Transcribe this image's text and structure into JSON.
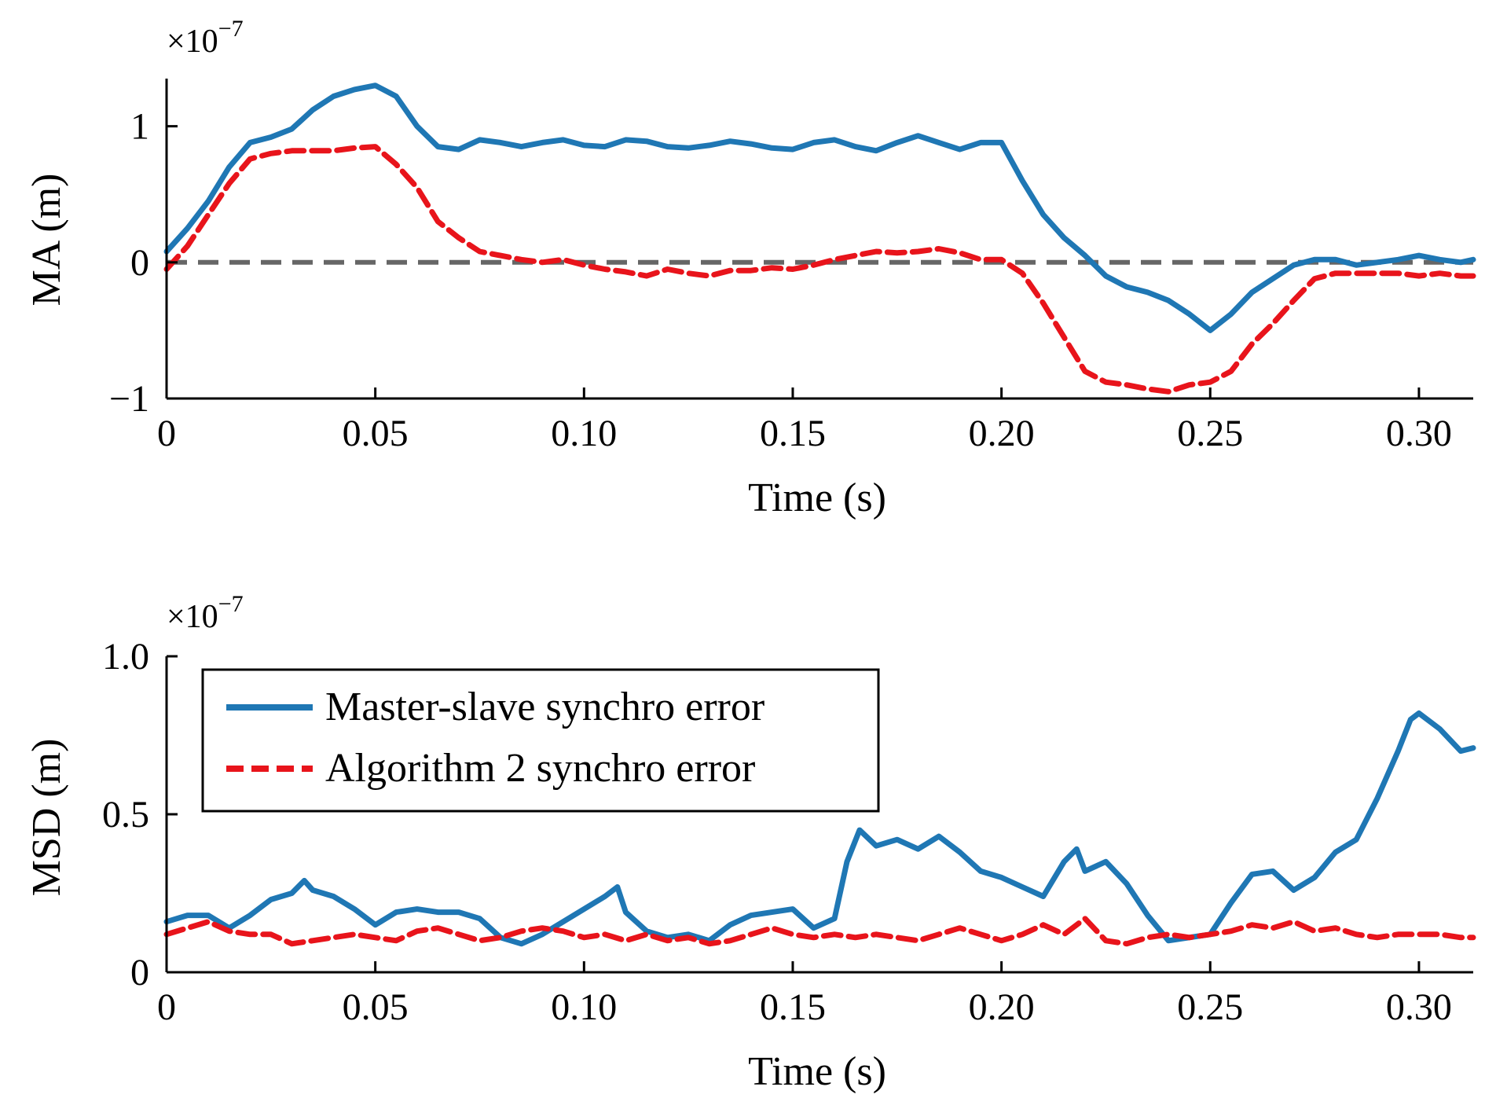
{
  "chart_data": [
    {
      "type": "line",
      "xlabel": "Time (s)",
      "ylabel": "MA (m)",
      "multiplier": "×10",
      "multiplier_exp": "−7",
      "xlim": [
        0,
        0.313
      ],
      "ylim": [
        -1,
        1.35
      ],
      "xticks": [
        0,
        0.05,
        0.1,
        0.15,
        0.2,
        0.25,
        0.3
      ],
      "xtick_labels": [
        "0",
        "0.05",
        "0.10",
        "0.15",
        "0.20",
        "0.25",
        "0.30"
      ],
      "yticks": [
        -1,
        0,
        1
      ],
      "ytick_labels": [
        "−1",
        "0",
        "1"
      ],
      "reference_line": {
        "y": 0,
        "color": "#666666",
        "style": "dashed"
      },
      "legend": "none",
      "series": [
        {
          "color": "#1f77b4",
          "style": "solid",
          "x": [
            0,
            0.005,
            0.01,
            0.015,
            0.02,
            0.025,
            0.03,
            0.035,
            0.04,
            0.045,
            0.05,
            0.055,
            0.06,
            0.065,
            0.07,
            0.075,
            0.08,
            0.085,
            0.09,
            0.095,
            0.1,
            0.105,
            0.11,
            0.115,
            0.12,
            0.125,
            0.13,
            0.135,
            0.14,
            0.145,
            0.15,
            0.155,
            0.16,
            0.165,
            0.17,
            0.175,
            0.18,
            0.185,
            0.19,
            0.195,
            0.2,
            0.205,
            0.21,
            0.215,
            0.22,
            0.225,
            0.23,
            0.235,
            0.24,
            0.245,
            0.25,
            0.255,
            0.26,
            0.265,
            0.27,
            0.275,
            0.28,
            0.285,
            0.29,
            0.295,
            0.3,
            0.305,
            0.31,
            0.313
          ],
          "y": [
            0.08,
            0.25,
            0.45,
            0.7,
            0.88,
            0.92,
            0.98,
            1.12,
            1.22,
            1.27,
            1.3,
            1.22,
            1.0,
            0.85,
            0.83,
            0.9,
            0.88,
            0.85,
            0.88,
            0.9,
            0.86,
            0.85,
            0.9,
            0.89,
            0.85,
            0.84,
            0.86,
            0.89,
            0.87,
            0.84,
            0.83,
            0.88,
            0.9,
            0.85,
            0.82,
            0.88,
            0.93,
            0.88,
            0.83,
            0.88,
            0.88,
            0.6,
            0.35,
            0.18,
            0.05,
            -0.1,
            -0.18,
            -0.22,
            -0.28,
            -0.38,
            -0.5,
            -0.38,
            -0.22,
            -0.12,
            -0.02,
            0.02,
            0.02,
            -0.02,
            0.0,
            0.02,
            0.05,
            0.02,
            0.0,
            0.02
          ]
        },
        {
          "color": "#e8141b",
          "style": "dashed",
          "x": [
            0,
            0.005,
            0.01,
            0.015,
            0.02,
            0.025,
            0.03,
            0.035,
            0.04,
            0.045,
            0.05,
            0.055,
            0.06,
            0.065,
            0.07,
            0.075,
            0.08,
            0.085,
            0.09,
            0.095,
            0.1,
            0.105,
            0.11,
            0.115,
            0.12,
            0.125,
            0.13,
            0.135,
            0.14,
            0.145,
            0.15,
            0.155,
            0.16,
            0.165,
            0.17,
            0.175,
            0.18,
            0.185,
            0.19,
            0.195,
            0.2,
            0.205,
            0.21,
            0.215,
            0.22,
            0.225,
            0.23,
            0.235,
            0.24,
            0.245,
            0.25,
            0.255,
            0.26,
            0.265,
            0.27,
            0.275,
            0.28,
            0.285,
            0.29,
            0.295,
            0.3,
            0.305,
            0.31,
            0.313
          ],
          "y": [
            -0.05,
            0.12,
            0.35,
            0.58,
            0.76,
            0.8,
            0.82,
            0.82,
            0.82,
            0.84,
            0.85,
            0.72,
            0.55,
            0.3,
            0.18,
            0.08,
            0.05,
            0.02,
            0.0,
            0.02,
            -0.02,
            -0.05,
            -0.07,
            -0.1,
            -0.05,
            -0.08,
            -0.1,
            -0.06,
            -0.06,
            -0.04,
            -0.05,
            -0.02,
            0.02,
            0.05,
            0.08,
            0.07,
            0.08,
            0.1,
            0.07,
            0.02,
            0.02,
            -0.08,
            -0.3,
            -0.55,
            -0.8,
            -0.88,
            -0.9,
            -0.93,
            -0.95,
            -0.9,
            -0.88,
            -0.8,
            -0.6,
            -0.45,
            -0.28,
            -0.12,
            -0.08,
            -0.08,
            -0.08,
            -0.08,
            -0.1,
            -0.08,
            -0.1,
            -0.1
          ]
        }
      ]
    },
    {
      "type": "line",
      "xlabel": "Time (s)",
      "ylabel": "MSD (m)",
      "multiplier": "×10",
      "multiplier_exp": "−7",
      "xlim": [
        0,
        0.313
      ],
      "ylim": [
        0,
        1.0
      ],
      "xticks": [
        0,
        0.05,
        0.1,
        0.15,
        0.2,
        0.25,
        0.3
      ],
      "xtick_labels": [
        "0",
        "0.05",
        "0.10",
        "0.15",
        "0.20",
        "0.25",
        "0.30"
      ],
      "yticks": [
        0,
        0.5,
        1.0
      ],
      "ytick_labels": [
        "0",
        "0.5",
        "1.0"
      ],
      "legend": "upper-left",
      "series": [
        {
          "name": "Master-slave synchro error",
          "color": "#1f77b4",
          "style": "solid",
          "x": [
            0,
            0.005,
            0.01,
            0.015,
            0.02,
            0.025,
            0.03,
            0.033,
            0.035,
            0.04,
            0.045,
            0.05,
            0.055,
            0.06,
            0.065,
            0.07,
            0.075,
            0.08,
            0.085,
            0.09,
            0.095,
            0.1,
            0.105,
            0.108,
            0.11,
            0.115,
            0.12,
            0.125,
            0.13,
            0.135,
            0.14,
            0.145,
            0.15,
            0.155,
            0.16,
            0.163,
            0.166,
            0.17,
            0.175,
            0.18,
            0.185,
            0.19,
            0.195,
            0.2,
            0.205,
            0.21,
            0.215,
            0.218,
            0.22,
            0.225,
            0.23,
            0.235,
            0.24,
            0.245,
            0.25,
            0.255,
            0.26,
            0.265,
            0.27,
            0.275,
            0.28,
            0.285,
            0.29,
            0.295,
            0.298,
            0.3,
            0.305,
            0.31,
            0.313
          ],
          "y": [
            0.16,
            0.18,
            0.18,
            0.14,
            0.18,
            0.23,
            0.25,
            0.29,
            0.26,
            0.24,
            0.2,
            0.15,
            0.19,
            0.2,
            0.19,
            0.19,
            0.17,
            0.11,
            0.09,
            0.12,
            0.16,
            0.2,
            0.24,
            0.27,
            0.19,
            0.13,
            0.11,
            0.12,
            0.1,
            0.15,
            0.18,
            0.19,
            0.2,
            0.14,
            0.17,
            0.35,
            0.45,
            0.4,
            0.42,
            0.39,
            0.43,
            0.38,
            0.32,
            0.3,
            0.27,
            0.24,
            0.35,
            0.39,
            0.32,
            0.35,
            0.28,
            0.18,
            0.1,
            0.11,
            0.12,
            0.22,
            0.31,
            0.32,
            0.26,
            0.3,
            0.38,
            0.42,
            0.55,
            0.7,
            0.8,
            0.82,
            0.77,
            0.7,
            0.71
          ]
        },
        {
          "name": "Algorithm 2 synchro error",
          "color": "#e8141b",
          "style": "dashed",
          "x": [
            0,
            0.005,
            0.01,
            0.015,
            0.02,
            0.025,
            0.03,
            0.035,
            0.04,
            0.045,
            0.05,
            0.055,
            0.06,
            0.065,
            0.07,
            0.075,
            0.08,
            0.085,
            0.09,
            0.095,
            0.1,
            0.105,
            0.11,
            0.115,
            0.12,
            0.125,
            0.13,
            0.135,
            0.14,
            0.145,
            0.15,
            0.155,
            0.16,
            0.165,
            0.17,
            0.175,
            0.18,
            0.185,
            0.19,
            0.195,
            0.2,
            0.205,
            0.21,
            0.215,
            0.22,
            0.225,
            0.23,
            0.235,
            0.24,
            0.245,
            0.25,
            0.255,
            0.26,
            0.265,
            0.27,
            0.275,
            0.28,
            0.285,
            0.29,
            0.295,
            0.3,
            0.305,
            0.31,
            0.313
          ],
          "y": [
            0.12,
            0.14,
            0.16,
            0.13,
            0.12,
            0.12,
            0.09,
            0.1,
            0.11,
            0.12,
            0.11,
            0.1,
            0.13,
            0.14,
            0.12,
            0.1,
            0.11,
            0.13,
            0.14,
            0.13,
            0.11,
            0.12,
            0.1,
            0.12,
            0.1,
            0.11,
            0.09,
            0.1,
            0.12,
            0.14,
            0.12,
            0.11,
            0.12,
            0.11,
            0.12,
            0.11,
            0.1,
            0.12,
            0.14,
            0.12,
            0.1,
            0.12,
            0.15,
            0.12,
            0.17,
            0.1,
            0.09,
            0.11,
            0.12,
            0.11,
            0.12,
            0.13,
            0.15,
            0.14,
            0.16,
            0.13,
            0.14,
            0.12,
            0.11,
            0.12,
            0.12,
            0.12,
            0.11,
            0.11
          ]
        }
      ]
    }
  ]
}
